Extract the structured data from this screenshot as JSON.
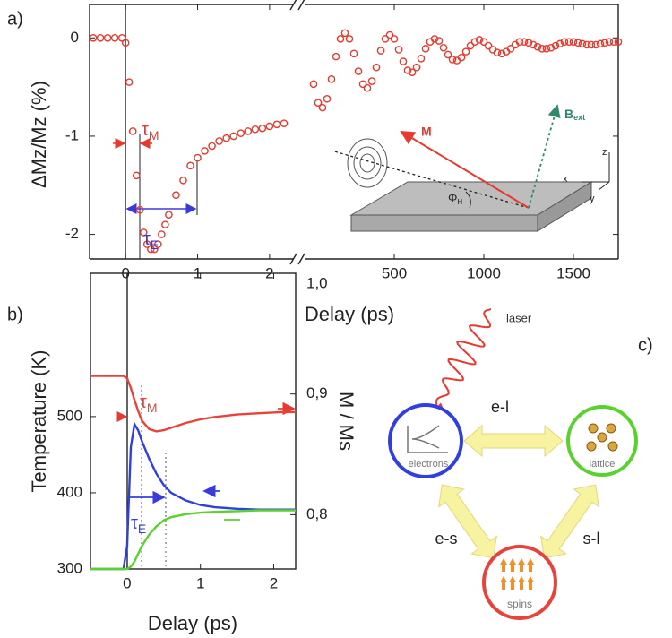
{
  "chart_data": [
    {
      "type": "scatter",
      "panel_label": "a)",
      "y_label": "ΔMz/Mz (%)",
      "x_label": "Delay (ps)",
      "color": "#e8392f",
      "x": [
        -0.45,
        -0.35,
        -0.25,
        -0.15,
        -0.05,
        0.0,
        0.05,
        0.1,
        0.15,
        0.2,
        0.25,
        0.3,
        0.35,
        0.4,
        0.45,
        0.5,
        0.55,
        0.6,
        0.7,
        0.8,
        0.9,
        1.0,
        1.1,
        1.2,
        1.3,
        1.4,
        1.5,
        1.6,
        1.7,
        1.8,
        1.9,
        2.0,
        2.1,
        2.2
      ],
      "values": [
        0,
        0,
        0,
        0,
        0,
        -0.05,
        -0.45,
        -0.95,
        -1.4,
        -1.75,
        -1.98,
        -2.1,
        -2.15,
        -2.15,
        -2.1,
        -2.0,
        -1.9,
        -1.8,
        -1.6,
        -1.45,
        -1.3,
        -1.22,
        -1.15,
        -1.1,
        -1.05,
        -1.02,
        -1.0,
        -0.97,
        -0.95,
        -0.93,
        -0.92,
        -0.9,
        -0.88,
        -0.87
      ],
      "xlim": [
        -0.5,
        2.3
      ],
      "xticks": [
        0,
        1,
        2
      ],
      "ylim": [
        -2.25,
        0.34
      ],
      "yticks": [
        0,
        -1,
        -2
      ],
      "annotations": [
        {
          "text": "τ",
          "subscript": "M",
          "color": "#e8392f"
        },
        {
          "text": "τ",
          "subscript": "E",
          "color": "#3a3adc"
        }
      ]
    },
    {
      "type": "scatter",
      "color": "#e8392f",
      "x": [
        50,
        75,
        100,
        125,
        150,
        175,
        200,
        225,
        250,
        275,
        300,
        325,
        350,
        375,
        400,
        425,
        450,
        475,
        500,
        525,
        550,
        575,
        600,
        625,
        650,
        675,
        700,
        725,
        750,
        775,
        800,
        825,
        850,
        875,
        900,
        925,
        950,
        975,
        1000,
        1025,
        1050,
        1075,
        1100,
        1125,
        1150,
        1175,
        1200,
        1225,
        1250,
        1275,
        1300,
        1325,
        1350,
        1375,
        1400,
        1425,
        1450,
        1475,
        1500,
        1525,
        1550,
        1575,
        1600,
        1625,
        1650,
        1675,
        1700,
        1725,
        1750
      ],
      "values": [
        -0.47,
        -0.66,
        -0.71,
        -0.62,
        -0.42,
        -0.19,
        -0.01,
        0.05,
        -0.01,
        -0.16,
        -0.34,
        -0.47,
        -0.51,
        -0.44,
        -0.3,
        -0.13,
        -0.01,
        0.03,
        -0.01,
        -0.12,
        -0.24,
        -0.33,
        -0.35,
        -0.3,
        -0.21,
        -0.11,
        -0.04,
        -0.01,
        -0.03,
        -0.1,
        -0.17,
        -0.22,
        -0.23,
        -0.2,
        -0.14,
        -0.08,
        -0.04,
        -0.02,
        -0.04,
        -0.08,
        -0.12,
        -0.15,
        -0.16,
        -0.14,
        -0.11,
        -0.07,
        -0.04,
        -0.04,
        -0.05,
        -0.07,
        -0.09,
        -0.11,
        -0.11,
        -0.1,
        -0.08,
        -0.06,
        -0.04,
        -0.04,
        -0.04,
        -0.05,
        -0.06,
        -0.07,
        -0.07,
        -0.07,
        -0.06,
        -0.05,
        -0.04,
        -0.04,
        -0.04
      ],
      "xlim": [
        25,
        1750
      ],
      "xticks": [
        500,
        1000,
        1500
      ],
      "ylim": [
        -2.25,
        0.34
      ]
    },
    {
      "type": "line",
      "panel_label": "b)",
      "x_label": "Delay (ps)",
      "y_label": "Temperature (K)",
      "y2_label": "M / Ms",
      "x": [
        -0.5,
        -0.05,
        0,
        0.05,
        0.1,
        0.15,
        0.2,
        0.3,
        0.4,
        0.5,
        0.6,
        0.8,
        1.0,
        1.2,
        1.5,
        1.8,
        2.1,
        2.3
      ],
      "series": [
        {
          "color": "#e8433a",
          "axis": "y2",
          "values": [
            0.915,
            0.915,
            0.913,
            0.905,
            0.895,
            0.886,
            0.878,
            0.871,
            0.869,
            0.87,
            0.872,
            0.876,
            0.879,
            0.881,
            0.883,
            0.884,
            0.885,
            0.885
          ]
        },
        {
          "color": "#2f3fe0",
          "values": [
            300,
            300,
            330,
            460,
            490,
            482,
            468,
            445,
            425,
            410,
            400,
            390,
            384,
            381,
            379,
            378,
            378,
            378
          ]
        },
        {
          "color": "#5ad22e",
          "values": [
            300,
            300,
            300,
            303,
            310,
            320,
            330,
            345,
            356,
            364,
            368,
            372,
            374,
            375,
            376,
            377,
            377,
            377
          ]
        }
      ],
      "xlim": [
        -0.5,
        2.3
      ],
      "xticks": [
        0,
        1,
        2
      ],
      "ylim": [
        300,
        688
      ],
      "yticks": [
        300,
        400,
        500
      ],
      "y2lim": [
        0.755,
        1.0
      ],
      "y2ticks": [
        {
          "value": 1.0,
          "label": "1,0"
        },
        {
          "value": 0.9,
          "label": "0,9"
        },
        {
          "value": 0.8,
          "label": "0,8"
        }
      ],
      "annotations": [
        {
          "text": "τ",
          "subscript": "M",
          "color": "#e8433a"
        },
        {
          "text": "τ",
          "subscript": "E",
          "color": "#2f3fe0"
        }
      ]
    }
  ],
  "inset": {
    "magnetization": "M",
    "field": {
      "text": "B",
      "subscript": "ext"
    },
    "angle": {
      "text": "Φ",
      "subscript": "H"
    },
    "axis_x": "x",
    "axis_y": "y",
    "axis_z": "z"
  },
  "diagram": {
    "panel_label": "c)",
    "laser": "laser",
    "electrons": "electrons",
    "lattice": "lattice",
    "spins": "spins",
    "e_l": "e-l",
    "e_s": "e-s",
    "s_l": "s-l"
  }
}
